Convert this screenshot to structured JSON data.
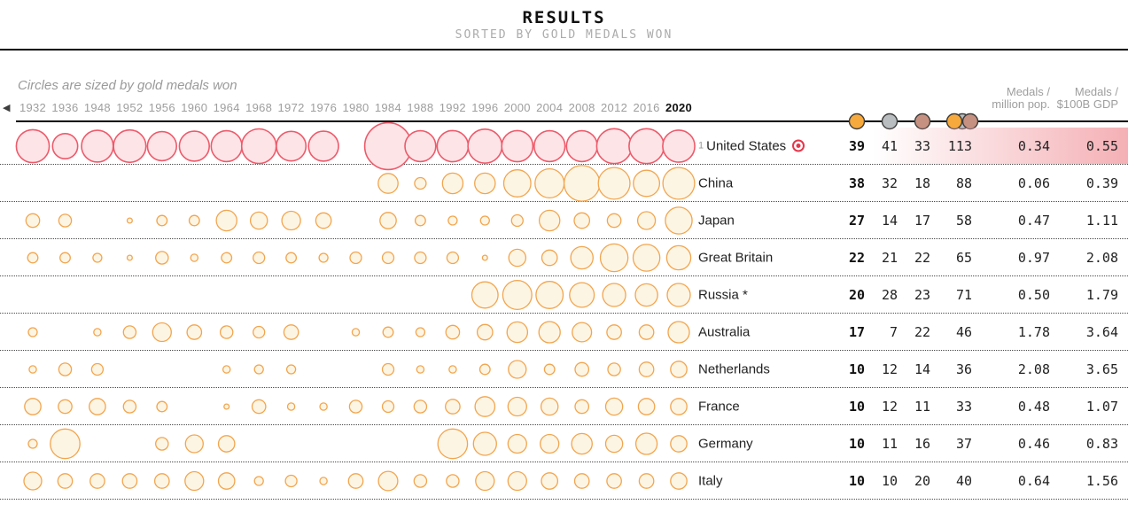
{
  "header": {
    "title": "RESULTS",
    "subtitle": "SORTED BY GOLD MEDALS WON"
  },
  "chart_caption": "Circles are sized by gold medals won",
  "nav": {
    "left_arrow": "◀"
  },
  "columns": {
    "medal_icons": [
      {
        "name": "gold-medal-icon",
        "color": "#F6A93C"
      },
      {
        "name": "silver-medal-icon",
        "color": "#B9BDC0"
      },
      {
        "name": "bronze-medal-icon",
        "color": "#C79181"
      },
      {
        "name": "total-medals-icon",
        "colors": [
          "#F6A93C",
          "#B9BDC0",
          "#C79181"
        ]
      }
    ],
    "per_million": {
      "line1": "Medals /",
      "line2": "million pop."
    },
    "per_gdp": {
      "line1": "Medals /",
      "line2": "$100B GDP"
    }
  },
  "accent_colors": {
    "highlight_red": "#e4374b",
    "us_circle_stroke": "#ee5a6a",
    "other_circle_stroke": "#f2a54e",
    "row_gradient_pink": "#f4b0b5"
  },
  "chart_data": {
    "type": "bubble",
    "title": "Gold medals won per Olympic Games by country",
    "size_encoding": "circle area ~ gold medals won",
    "years": [
      1932,
      1936,
      1948,
      1952,
      1956,
      1960,
      1964,
      1968,
      1972,
      1976,
      1980,
      1984,
      1988,
      1992,
      1996,
      2000,
      2004,
      2008,
      2012,
      2016,
      2020
    ],
    "current_year": 2020,
    "series": [
      {
        "name": "United States",
        "golds_by_year": {
          "1932": 41,
          "1936": 24,
          "1948": 38,
          "1952": 40,
          "1956": 32,
          "1960": 34,
          "1964": 36,
          "1968": 45,
          "1972": 33,
          "1976": 34,
          "1984": 83,
          "1988": 36,
          "1992": 37,
          "1996": 44,
          "2000": 37,
          "2004": 36,
          "2008": 36,
          "2012": 46,
          "2016": 46,
          "2020": 39
        }
      },
      {
        "name": "China",
        "golds_by_year": {
          "1984": 15,
          "1988": 5,
          "1992": 16,
          "1996": 16,
          "2000": 28,
          "2004": 32,
          "2008": 48,
          "2012": 38,
          "2016": 26,
          "2020": 38
        }
      },
      {
        "name": "Japan",
        "golds_by_year": {
          "1932": 7,
          "1936": 6,
          "1952": 1,
          "1956": 4,
          "1960": 4,
          "1964": 16,
          "1968": 11,
          "1972": 13,
          "1976": 9,
          "1984": 10,
          "1988": 4,
          "1992": 3,
          "1996": 3,
          "2000": 5,
          "2004": 16,
          "2008": 9,
          "2012": 7,
          "2016": 12,
          "2020": 27
        }
      },
      {
        "name": "Great Britain",
        "golds_by_year": {
          "1932": 4,
          "1936": 4,
          "1948": 3,
          "1952": 1,
          "1956": 6,
          "1960": 2,
          "1964": 4,
          "1968": 5,
          "1972": 4,
          "1976": 3,
          "1980": 5,
          "1984": 5,
          "1988": 5,
          "1992": 5,
          "1996": 1,
          "2000": 11,
          "2004": 9,
          "2008": 19,
          "2012": 29,
          "2016": 27,
          "2020": 22
        }
      },
      {
        "name": "Russia *",
        "golds_by_year": {
          "1996": 26,
          "2000": 32,
          "2004": 28,
          "2008": 23,
          "2012": 20,
          "2016": 19,
          "2020": 20
        }
      },
      {
        "name": "Australia",
        "golds_by_year": {
          "1932": 3,
          "1948": 2,
          "1952": 6,
          "1956": 13,
          "1960": 8,
          "1964": 6,
          "1968": 5,
          "1972": 8,
          "1980": 2,
          "1984": 4,
          "1988": 3,
          "1992": 7,
          "1996": 9,
          "2000": 16,
          "2004": 17,
          "2008": 14,
          "2012": 8,
          "2016": 8,
          "2020": 17
        }
      },
      {
        "name": "Netherlands",
        "golds_by_year": {
          "1932": 2,
          "1936": 6,
          "1948": 5,
          "1964": 2,
          "1968": 3,
          "1972": 3,
          "1984": 5,
          "1988": 2,
          "1992": 2,
          "1996": 4,
          "2000": 12,
          "2004": 4,
          "2008": 7,
          "2012": 6,
          "2016": 8,
          "2020": 10
        }
      },
      {
        "name": "France",
        "golds_by_year": {
          "1932": 10,
          "1936": 7,
          "1948": 10,
          "1952": 6,
          "1956": 4,
          "1964": 1,
          "1968": 7,
          "1972": 2,
          "1976": 2,
          "1980": 6,
          "1984": 5,
          "1988": 6,
          "1992": 8,
          "1996": 15,
          "2000": 13,
          "2004": 11,
          "2008": 7,
          "2012": 11,
          "2016": 10,
          "2020": 10
        }
      },
      {
        "name": "Germany",
        "golds_by_year": {
          "1932": 3,
          "1936": 33,
          "1956": 6,
          "1960": 12,
          "1964": 10,
          "1992": 33,
          "1996": 20,
          "2000": 13,
          "2004": 13,
          "2008": 16,
          "2012": 11,
          "2016": 17,
          "2020": 10
        }
      },
      {
        "name": "Italy",
        "golds_by_year": {
          "1932": 12,
          "1936": 8,
          "1948": 8,
          "1952": 8,
          "1956": 8,
          "1960": 13,
          "1964": 10,
          "1968": 3,
          "1972": 5,
          "1976": 2,
          "1980": 8,
          "1984": 14,
          "1988": 6,
          "1992": 6,
          "1996": 13,
          "2000": 13,
          "2004": 10,
          "2008": 8,
          "2012": 8,
          "2016": 8,
          "2020": 10
        }
      }
    ]
  },
  "table": {
    "rows": [
      {
        "rank": "1",
        "country": "United States",
        "gold": "39",
        "silver": "41",
        "bronze": "33",
        "total": "113",
        "per_million": "0.34",
        "per_gdp": "0.55",
        "highlighted": true
      },
      {
        "rank": "",
        "country": "China",
        "gold": "38",
        "silver": "32",
        "bronze": "18",
        "total": "88",
        "per_million": "0.06",
        "per_gdp": "0.39",
        "highlighted": false
      },
      {
        "rank": "",
        "country": "Japan",
        "gold": "27",
        "silver": "14",
        "bronze": "17",
        "total": "58",
        "per_million": "0.47",
        "per_gdp": "1.11",
        "highlighted": false
      },
      {
        "rank": "",
        "country": "Great Britain",
        "gold": "22",
        "silver": "21",
        "bronze": "22",
        "total": "65",
        "per_million": "0.97",
        "per_gdp": "2.08",
        "highlighted": false
      },
      {
        "rank": "",
        "country": "Russia *",
        "gold": "20",
        "silver": "28",
        "bronze": "23",
        "total": "71",
        "per_million": "0.50",
        "per_gdp": "1.79",
        "highlighted": false
      },
      {
        "rank": "",
        "country": "Australia",
        "gold": "17",
        "silver": "7",
        "bronze": "22",
        "total": "46",
        "per_million": "1.78",
        "per_gdp": "3.64",
        "highlighted": false
      },
      {
        "rank": "",
        "country": "Netherlands",
        "gold": "10",
        "silver": "12",
        "bronze": "14",
        "total": "36",
        "per_million": "2.08",
        "per_gdp": "3.65",
        "highlighted": false
      },
      {
        "rank": "",
        "country": "France",
        "gold": "10",
        "silver": "12",
        "bronze": "11",
        "total": "33",
        "per_million": "0.48",
        "per_gdp": "1.07",
        "highlighted": false
      },
      {
        "rank": "",
        "country": "Germany",
        "gold": "10",
        "silver": "11",
        "bronze": "16",
        "total": "37",
        "per_million": "0.46",
        "per_gdp": "0.83",
        "highlighted": false
      },
      {
        "rank": "",
        "country": "Italy",
        "gold": "10",
        "silver": "10",
        "bronze": "20",
        "total": "40",
        "per_million": "0.64",
        "per_gdp": "1.56",
        "highlighted": false
      }
    ]
  }
}
